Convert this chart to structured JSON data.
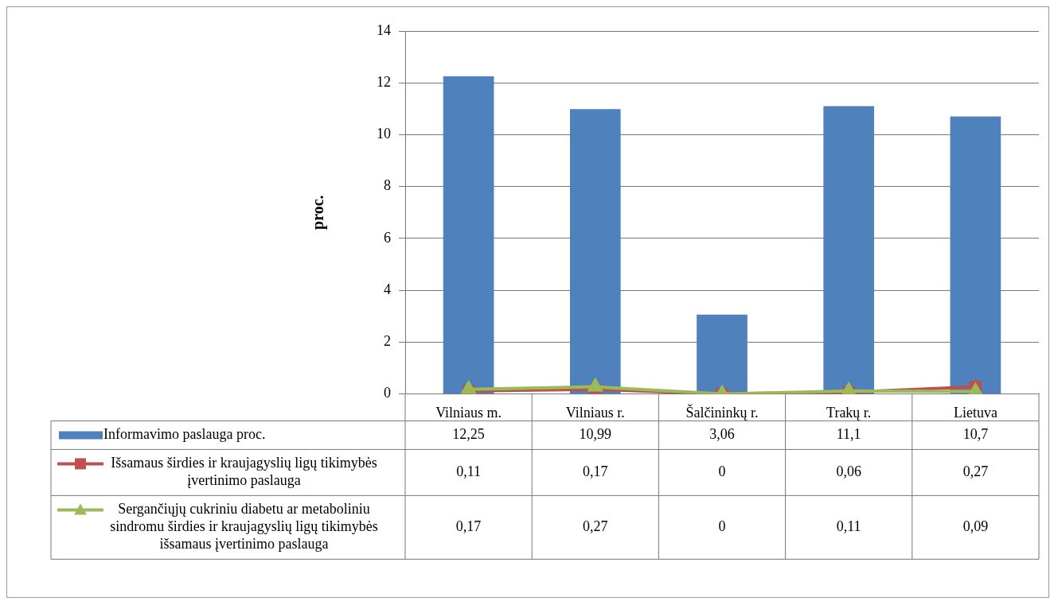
{
  "chart_data": {
    "type": "bar",
    "ylabel": "proc.",
    "categories": [
      "Vilniaus m.",
      "Vilniaus r.",
      "Šalčininkų r.",
      "Trakų r.",
      "Lietuva"
    ],
    "series": [
      {
        "name": "Informavimo paslauga proc.",
        "color": "#4f81bd",
        "values": [
          12.25,
          10.99,
          3.06,
          11.1,
          10.7
        ],
        "value_labels": [
          "12,25",
          "10,99",
          "3,06",
          "11,1",
          "10,7"
        ]
      },
      {
        "name": "Išsamaus širdies ir kraujagyslių ligų tikimybės įvertinimo paslauga",
        "type": "line",
        "marker": "square",
        "color": "#c0504d",
        "values": [
          0.11,
          0.17,
          0,
          0.06,
          0.27
        ],
        "value_labels": [
          "0,11",
          "0,17",
          "0",
          "0,06",
          "0,27"
        ]
      },
      {
        "name": "Sergančiųjų cukriniu diabetu ar metaboliniu sindromu širdies ir kraujagyslių ligų tikimybės išsamaus įvertinimo paslauga",
        "type": "line",
        "marker": "triangle",
        "color": "#9bbb59",
        "values": [
          0.17,
          0.27,
          0,
          0.11,
          0.09
        ],
        "value_labels": [
          "0,17",
          "0,27",
          "0",
          "0,11",
          "0,09"
        ]
      }
    ],
    "ylim": [
      0,
      14
    ],
    "yticks": [
      0,
      2,
      4,
      6,
      8,
      10,
      12,
      14
    ],
    "grid": "y",
    "legend": "bottom"
  }
}
